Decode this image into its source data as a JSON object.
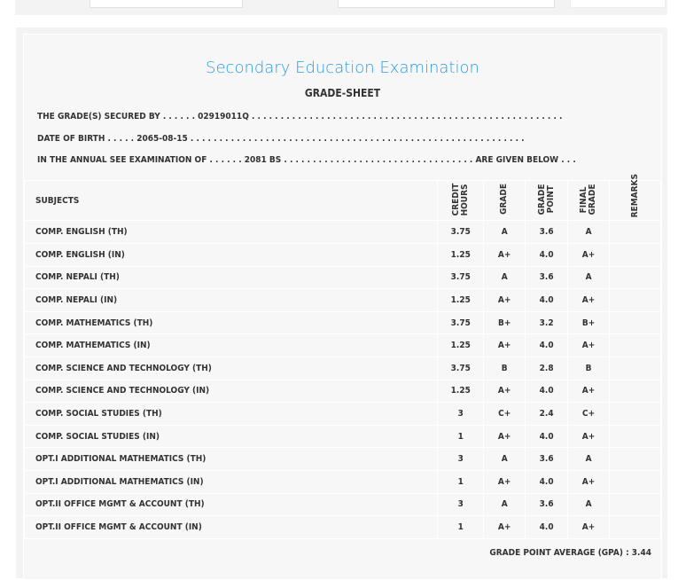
{
  "title": "Secondary Education Examination",
  "subtitle": "GRADE-SHEET",
  "info": {
    "secured_by": "THE GRADE(S) SECURED BY . . . . . . 02919011Q . . . . . . . . . . . . . . . . . . . . . . . . . . . . . . . . . . . . . . . . . . . . . . . . . . . . . .",
    "dob": "DATE OF BIRTH . . . . . 2065-08-15 . . . . . . . . . . . . . . . . . . . . . . . . . . . . . . . . . . . . . . . . . . . . . . . . . . . . . . . . . .",
    "exam": "IN THE ANNUAL SEE EXAMINATION OF . . . . . . 2081 BS . . . . . . . . . . . . . . . . . . . . . . . . . . . . . . . . . ARE GIVEN BELOW . . ."
  },
  "headers": {
    "subjects": "SUBJECTS",
    "credit": "CREDIT HOURS",
    "grade": "GRADE",
    "point": "GRADE POINT",
    "final": "FINAL GRADE",
    "remarks": "REMARKS"
  },
  "rows": [
    [
      "COMP. ENGLISH (TH)",
      "3.75",
      "A",
      "3.6",
      "A"
    ],
    [
      "COMP. ENGLISH (IN)",
      "1.25",
      "A+",
      "4.0",
      "A+"
    ],
    [
      "COMP. NEPALI (TH)",
      "3.75",
      "A",
      "3.6",
      "A"
    ],
    [
      "COMP. NEPALI (IN)",
      "1.25",
      "A+",
      "4.0",
      "A+"
    ],
    [
      "COMP. MATHEMATICS (TH)",
      "3.75",
      "B+",
      "3.2",
      "B+"
    ],
    [
      "COMP. MATHEMATICS (IN)",
      "1.25",
      "A+",
      "4.0",
      "A+"
    ],
    [
      "COMP. SCIENCE AND TECHNOLOGY (TH)",
      "3.75",
      "B",
      "2.8",
      "B"
    ],
    [
      "COMP. SCIENCE AND TECHNOLOGY (IN)",
      "1.25",
      "A+",
      "4.0",
      "A+"
    ],
    [
      "COMP. SOCIAL STUDIES (TH)",
      "3",
      "C+",
      "2.4",
      "C+"
    ],
    [
      "COMP. SOCIAL STUDIES (IN)",
      "1",
      "A+",
      "4.0",
      "A+"
    ],
    [
      "OPT.I ADDITIONAL MATHEMATICS (TH)",
      "3",
      "A",
      "3.6",
      "A"
    ],
    [
      "OPT.I ADDITIONAL MATHEMATICS (IN)",
      "1",
      "A+",
      "4.0",
      "A+"
    ],
    [
      "OPT.II OFFICE MGMT & ACCOUNT (TH)",
      "3",
      "A",
      "3.6",
      "A"
    ],
    [
      "OPT.II OFFICE MGMT & ACCOUNT (IN)",
      "1",
      "A+",
      "4.0",
      "A+"
    ]
  ],
  "gpa": "GRADE POINT AVERAGE (GPA) : 3.44"
}
